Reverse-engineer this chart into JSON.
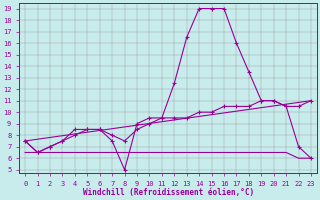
{
  "bg_color": "#c8ecec",
  "line_color": "#990099",
  "xlabel": "Windchill (Refroidissement éolien,°C)",
  "ylim": [
    5,
    19
  ],
  "xlim": [
    0,
    23
  ],
  "yticks": [
    5,
    6,
    7,
    8,
    9,
    10,
    11,
    12,
    13,
    14,
    15,
    16,
    17,
    18,
    19
  ],
  "xticks": [
    0,
    1,
    2,
    3,
    4,
    5,
    6,
    7,
    8,
    9,
    10,
    11,
    12,
    13,
    14,
    15,
    16,
    17,
    18,
    19,
    20,
    21,
    22,
    23
  ],
  "series1_x": [
    0,
    1,
    2,
    3,
    4,
    5,
    6,
    7,
    8,
    9,
    10,
    11,
    12,
    13,
    14,
    15,
    16,
    17,
    18,
    19,
    20,
    21,
    22,
    23
  ],
  "series1_y": [
    7.5,
    6.5,
    7.0,
    7.5,
    8.5,
    8.5,
    8.5,
    7.5,
    5.0,
    9.0,
    9.5,
    9.5,
    12.5,
    16.5,
    19.0,
    19.0,
    19.0,
    16.0,
    13.5,
    11.0,
    11.0,
    10.5,
    7.0,
    6.0
  ],
  "series2_x": [
    0,
    1,
    2,
    3,
    4,
    5,
    6,
    7,
    8,
    9,
    10,
    11,
    12,
    13,
    14,
    15,
    16,
    17,
    18,
    19,
    20,
    21,
    22,
    23
  ],
  "series2_y": [
    7.5,
    6.5,
    7.0,
    7.5,
    8.0,
    8.5,
    8.5,
    8.0,
    7.5,
    8.5,
    9.0,
    9.5,
    9.5,
    9.5,
    10.0,
    10.0,
    10.5,
    10.5,
    10.5,
    11.0,
    11.0,
    10.5,
    10.5,
    11.0
  ],
  "series3_x": [
    0,
    23
  ],
  "series3_y": [
    7.5,
    11.0
  ],
  "series4_x": [
    0,
    1,
    2,
    3,
    4,
    5,
    6,
    7,
    8,
    9,
    10,
    11,
    12,
    13,
    14,
    15,
    16,
    17,
    18,
    19,
    20,
    21,
    22,
    23
  ],
  "series4_y": [
    6.5,
    6.5,
    6.5,
    6.5,
    6.5,
    6.5,
    6.5,
    6.5,
    6.5,
    6.5,
    6.5,
    6.5,
    6.5,
    6.5,
    6.5,
    6.5,
    6.5,
    6.5,
    6.5,
    6.5,
    6.5,
    6.5,
    6.0,
    6.0
  ],
  "grid_color": "#999999",
  "font_color": "#990099",
  "label_fontsize": 5,
  "xlabel_fontsize": 5.5
}
